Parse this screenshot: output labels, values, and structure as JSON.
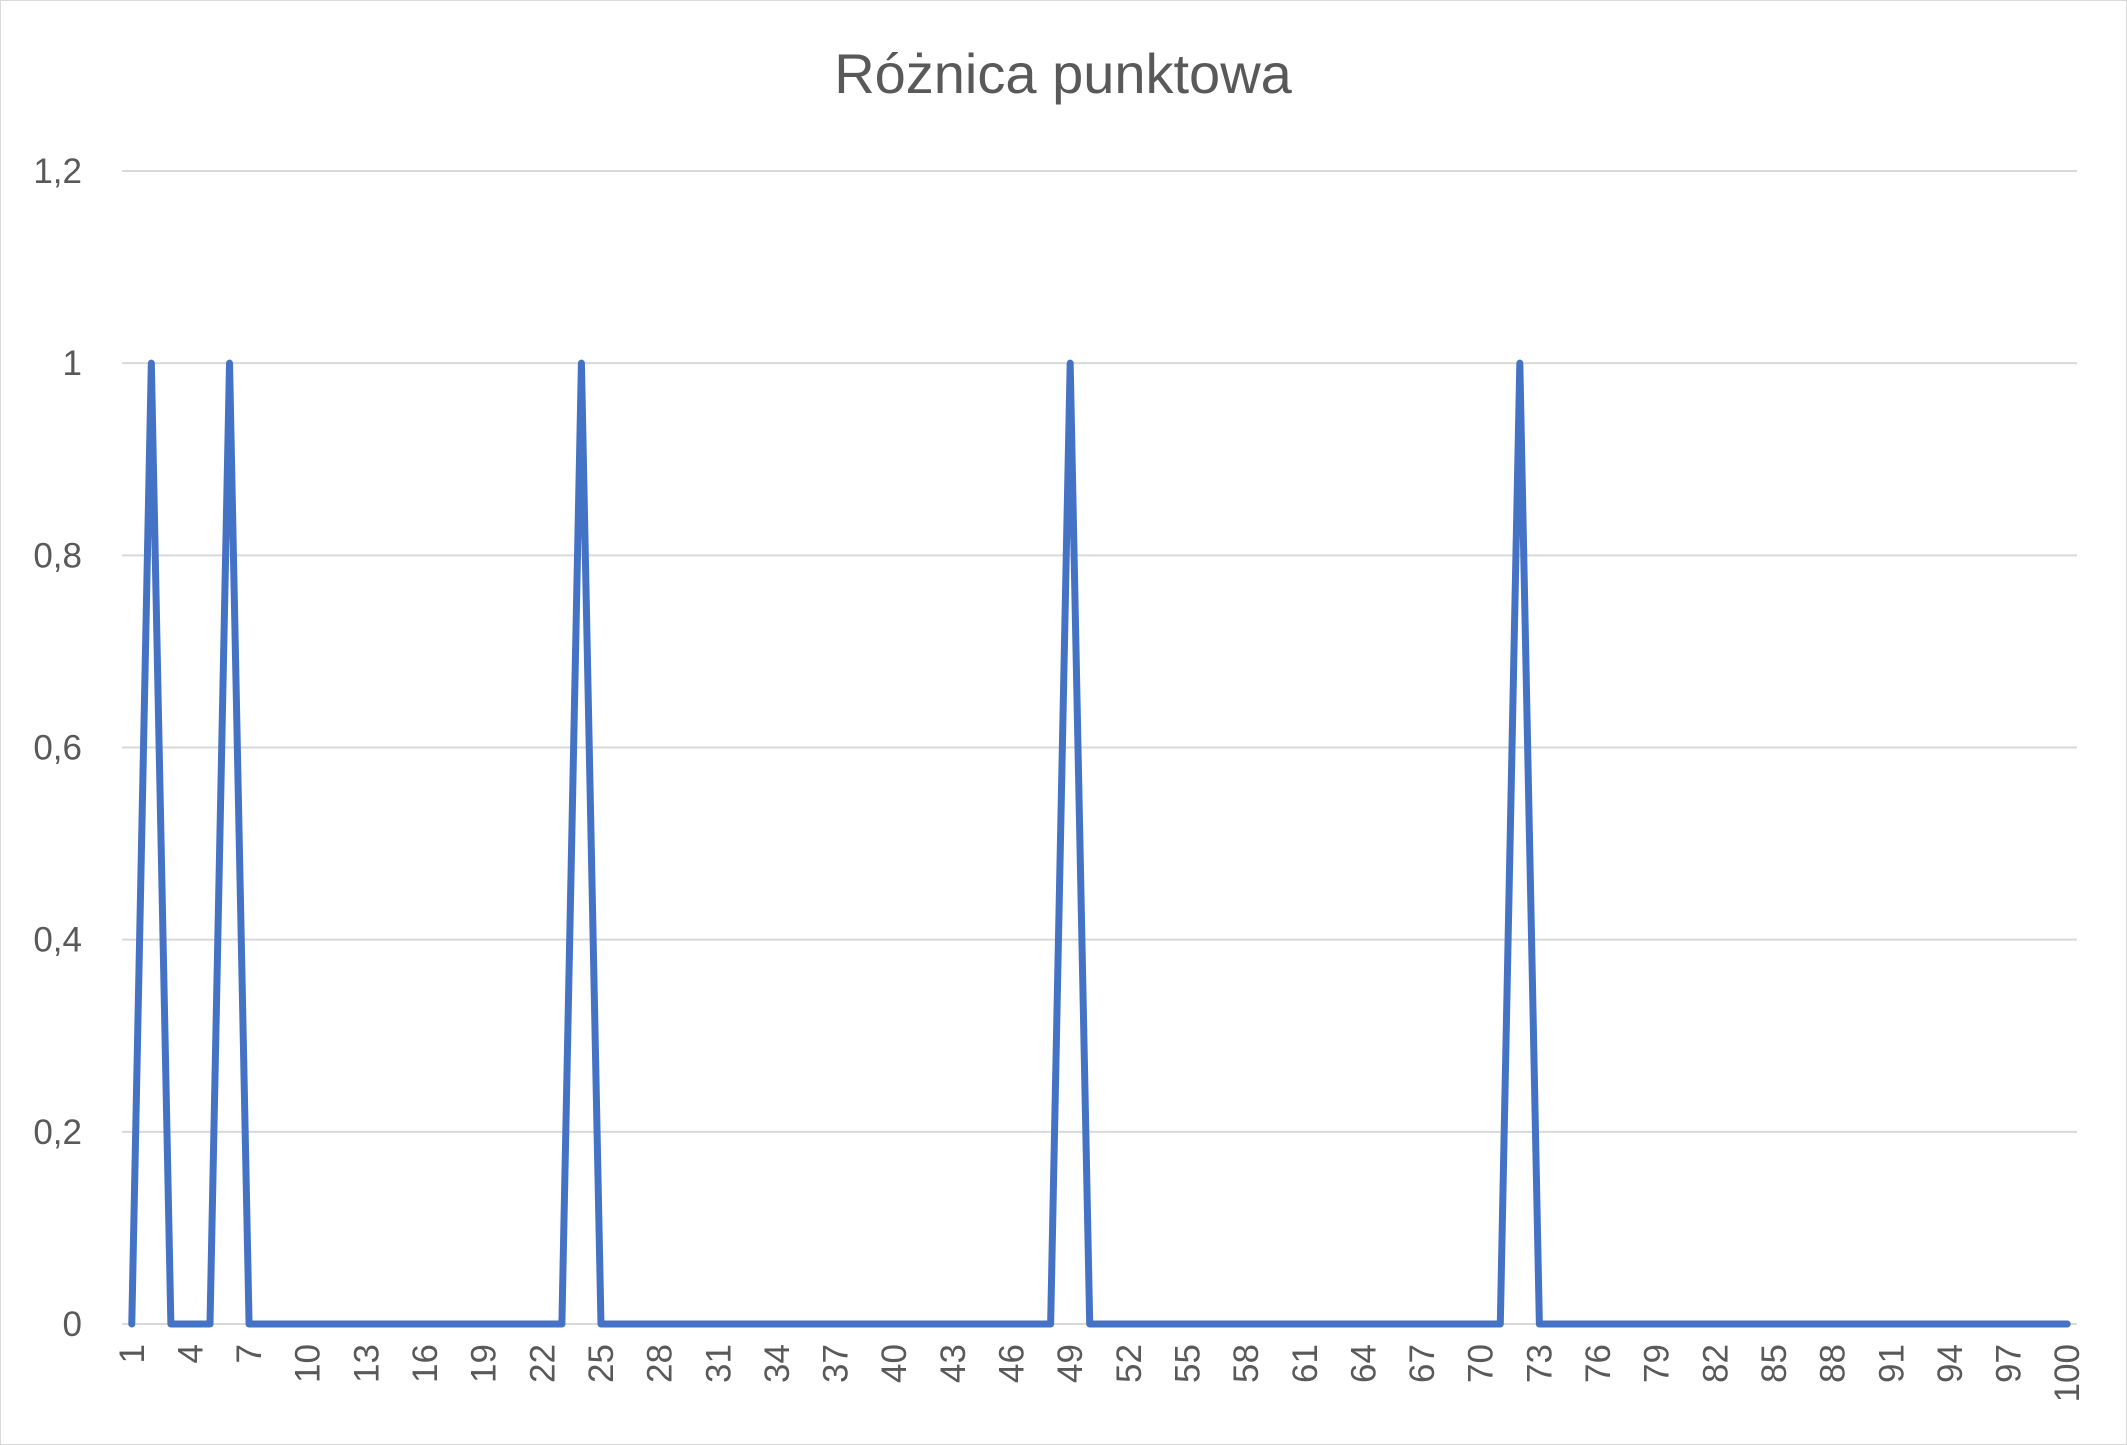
{
  "chart_data": {
    "type": "line",
    "title": "Różnica punktowa",
    "xlabel": "",
    "ylabel": "",
    "x": [
      1,
      2,
      3,
      4,
      5,
      6,
      7,
      8,
      9,
      10,
      11,
      12,
      13,
      14,
      15,
      16,
      17,
      18,
      19,
      20,
      21,
      22,
      23,
      24,
      25,
      26,
      27,
      28,
      29,
      30,
      31,
      32,
      33,
      34,
      35,
      36,
      37,
      38,
      39,
      40,
      41,
      42,
      43,
      44,
      45,
      46,
      47,
      48,
      49,
      50,
      51,
      52,
      53,
      54,
      55,
      56,
      57,
      58,
      59,
      60,
      61,
      62,
      63,
      64,
      65,
      66,
      67,
      68,
      69,
      70,
      71,
      72,
      73,
      74,
      75,
      76,
      77,
      78,
      79,
      80,
      81,
      82,
      83,
      84,
      85,
      86,
      87,
      88,
      89,
      90,
      91,
      92,
      93,
      94,
      95,
      96,
      97,
      98,
      99,
      100
    ],
    "x_tick_labels": [
      "1",
      "4",
      "7",
      "10",
      "13",
      "16",
      "19",
      "22",
      "25",
      "28",
      "31",
      "34",
      "37",
      "40",
      "43",
      "46",
      "49",
      "52",
      "55",
      "58",
      "61",
      "64",
      "67",
      "70",
      "73",
      "76",
      "79",
      "82",
      "85",
      "88",
      "91",
      "94",
      "97",
      "100"
    ],
    "series": [
      {
        "values": [
          0,
          1,
          0,
          0,
          0,
          1,
          0,
          0,
          0,
          0,
          0,
          0,
          0,
          0,
          0,
          0,
          0,
          0,
          0,
          0,
          0,
          0,
          0,
          1,
          0,
          0,
          0,
          0,
          0,
          0,
          0,
          0,
          0,
          0,
          0,
          0,
          0,
          0,
          0,
          0,
          0,
          0,
          0,
          0,
          0,
          0,
          0,
          0,
          1,
          0,
          0,
          0,
          0,
          0,
          0,
          0,
          0,
          0,
          0,
          0,
          0,
          0,
          0,
          0,
          0,
          0,
          0,
          0,
          0,
          0,
          0,
          1,
          0,
          0,
          0,
          0,
          0,
          0,
          0,
          0,
          0,
          0,
          0,
          0,
          0,
          0,
          0,
          0,
          0,
          0,
          0,
          0,
          0,
          0,
          0,
          0,
          0,
          0,
          0,
          0
        ],
        "color": "#4472C4"
      }
    ],
    "ylim": [
      0,
      1.2
    ],
    "y_ticks": [
      0,
      0.2,
      0.4,
      0.6,
      0.8,
      1,
      1.2
    ],
    "y_tick_labels": [
      "0",
      "0,2",
      "0,4",
      "0,6",
      "0,8",
      "1",
      "1,2"
    ],
    "grid": true,
    "legend": "none",
    "gridline_color": "#d9d9d9",
    "text_color": "#595959"
  }
}
